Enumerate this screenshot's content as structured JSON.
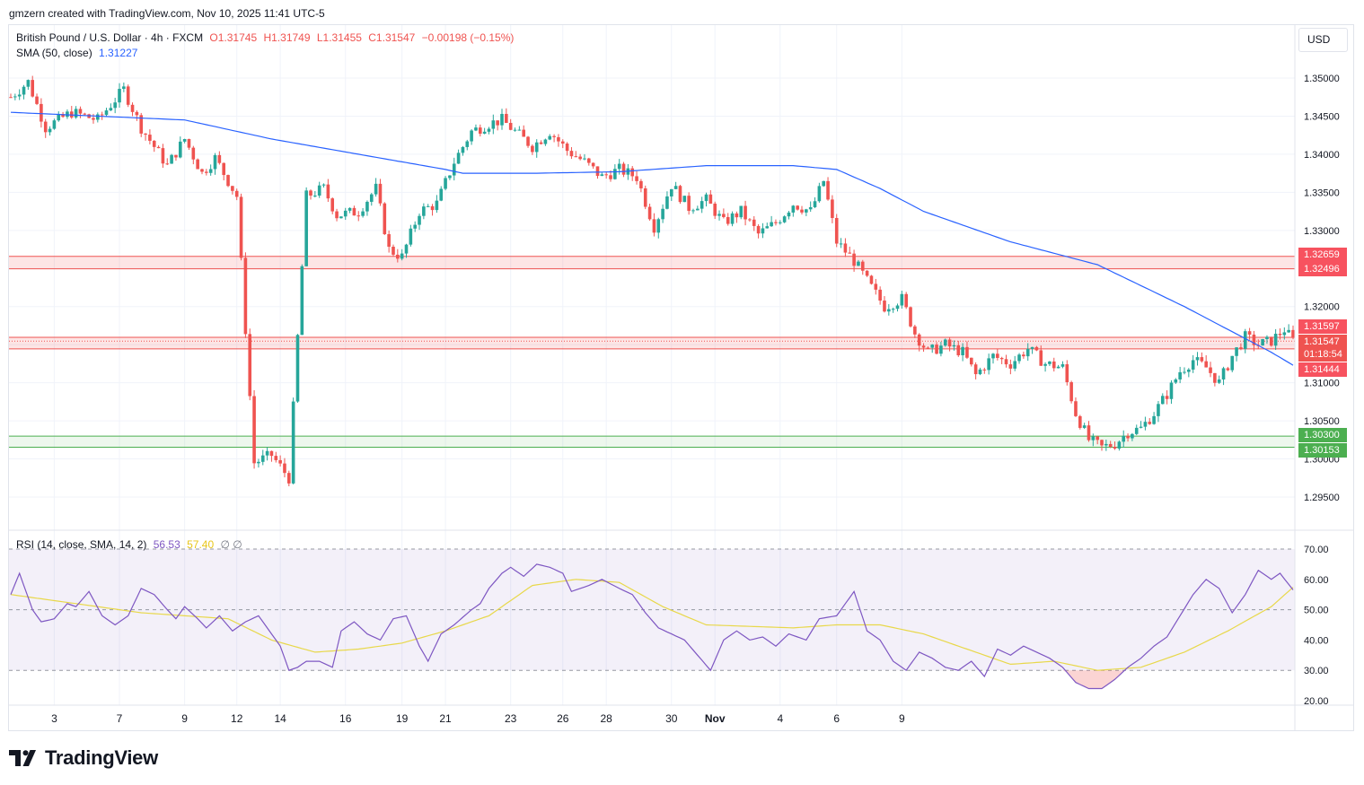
{
  "header": {
    "credit": "gmzern created with TradingView.com, Nov 10, 2025 11:41 UTC-5"
  },
  "legend": {
    "symbol": "British Pound / U.S. Dollar · 4h · FXCM",
    "open": "O1.31745",
    "high": "H1.31749",
    "low": "L1.31455",
    "close": "C1.31547",
    "change": "−0.00198 (−0.15%)",
    "sma_label": "SMA (50, close)",
    "sma_value": "1.31227",
    "rsi_label": "RSI (14, close, SMA, 14, 2)",
    "rsi_value": "56.53",
    "rsi_sma_value": "57.40",
    "rsi_extra": "∅ ∅"
  },
  "currency": "USD",
  "price_labels": {
    "zone1_top": "1.32659",
    "zone1_bottom": "1.32496",
    "zone2_top": "1.31597",
    "last_price": "1.31547",
    "countdown": "01:18:54",
    "zone2_bottom": "1.31444",
    "zone3_top": "1.30300",
    "zone3_bottom": "1.30153"
  },
  "footer": {
    "brand": "TradingView"
  },
  "colors": {
    "up": "#26a69a",
    "down": "#ef5350",
    "sma": "#2962ff",
    "rsi": "#7e57c2",
    "rsi_sma": "#e8d84a",
    "support": "#4caf50",
    "resistance": "#ef5350"
  },
  "chart_data": [
    {
      "type": "candlestick",
      "title": "British Pound / U.S. Dollar · 4h · FXCM",
      "ylim": [
        1.2925,
        1.3545
      ],
      "yticks": [
        1.295,
        1.3,
        1.305,
        1.31,
        1.315,
        1.32,
        1.325,
        1.33,
        1.335,
        1.34,
        1.345,
        1.35
      ],
      "xticks": [
        "3",
        "7",
        "9",
        "12",
        "14",
        "16",
        "19",
        "21",
        "23",
        "26",
        "28",
        "30",
        "Nov",
        "4",
        "6",
        "9"
      ],
      "grid": true,
      "zones": [
        {
          "name": "resistance",
          "top": 1.32659,
          "bottom": 1.32496
        },
        {
          "name": "resistance",
          "top": 1.31597,
          "bottom": 1.31444
        },
        {
          "name": "support",
          "top": 1.303,
          "bottom": 1.30153
        }
      ],
      "close_anchors": [
        [
          0,
          1.3475
        ],
        [
          4,
          1.3495
        ],
        [
          8,
          1.3435
        ],
        [
          14,
          1.3455
        ],
        [
          20,
          1.3445
        ],
        [
          26,
          1.3485
        ],
        [
          30,
          1.3435
        ],
        [
          36,
          1.3385
        ],
        [
          40,
          1.342
        ],
        [
          44,
          1.3375
        ],
        [
          47,
          1.3395
        ],
        [
          52,
          1.3345
        ],
        [
          56,
          1.2995
        ],
        [
          60,
          1.3005
        ],
        [
          64,
          1.2975
        ],
        [
          68,
          1.3345
        ],
        [
          72,
          1.3355
        ],
        [
          75,
          1.332
        ],
        [
          80,
          1.3325
        ],
        [
          84,
          1.3355
        ],
        [
          87,
          1.3275
        ],
        [
          90,
          1.3265
        ],
        [
          94,
          1.3325
        ],
        [
          98,
          1.3335
        ],
        [
          102,
          1.339
        ],
        [
          106,
          1.343
        ],
        [
          110,
          1.344
        ],
        [
          113,
          1.3445
        ],
        [
          116,
          1.343
        ],
        [
          120,
          1.341
        ],
        [
          124,
          1.343
        ],
        [
          128,
          1.3405
        ],
        [
          132,
          1.339
        ],
        [
          136,
          1.337
        ],
        [
          140,
          1.338
        ],
        [
          144,
          1.337
        ],
        [
          148,
          1.3305
        ],
        [
          152,
          1.336
        ],
        [
          156,
          1.333
        ],
        [
          160,
          1.334
        ],
        [
          164,
          1.331
        ],
        [
          168,
          1.3325
        ],
        [
          172,
          1.3295
        ],
        [
          176,
          1.331
        ],
        [
          180,
          1.3335
        ],
        [
          184,
          1.3325
        ],
        [
          187,
          1.3365
        ],
        [
          190,
          1.3285
        ],
        [
          194,
          1.326
        ],
        [
          198,
          1.3225
        ],
        [
          201,
          1.32
        ],
        [
          205,
          1.321
        ],
        [
          208,
          1.3165
        ],
        [
          211,
          1.314
        ],
        [
          215,
          1.315
        ],
        [
          219,
          1.314
        ],
        [
          222,
          1.311
        ],
        [
          226,
          1.3135
        ],
        [
          230,
          1.3125
        ],
        [
          234,
          1.3145
        ],
        [
          238,
          1.3125
        ],
        [
          242,
          1.312
        ],
        [
          245,
          1.306
        ],
        [
          248,
          1.3025
        ],
        [
          251,
          1.3015
        ],
        [
          254,
          1.302
        ],
        [
          257,
          1.3035
        ],
        [
          260,
          1.304
        ],
        [
          263,
          1.306
        ],
        [
          266,
          1.3085
        ],
        [
          269,
          1.3115
        ],
        [
          272,
          1.313
        ],
        [
          275,
          1.312
        ],
        [
          278,
          1.31
        ],
        [
          281,
          1.3135
        ],
        [
          284,
          1.316
        ],
        [
          287,
          1.315
        ],
        [
          290,
          1.3155
        ],
        [
          293,
          1.317
        ],
        [
          295,
          1.3155
        ]
      ],
      "sma_anchors": [
        [
          0,
          1.3455
        ],
        [
          40,
          1.3445
        ],
        [
          60,
          1.342
        ],
        [
          80,
          1.34
        ],
        [
          100,
          1.338
        ],
        [
          104,
          1.3375
        ],
        [
          120,
          1.3375
        ],
        [
          140,
          1.3377
        ],
        [
          160,
          1.3385
        ],
        [
          180,
          1.3385
        ],
        [
          190,
          1.338
        ],
        [
          200,
          1.3355
        ],
        [
          210,
          1.3325
        ],
        [
          230,
          1.3285
        ],
        [
          250,
          1.3255
        ],
        [
          270,
          1.32
        ],
        [
          280,
          1.317
        ],
        [
          290,
          1.314
        ],
        [
          295,
          1.3123
        ]
      ],
      "last_price": 1.31547,
      "sma_last": 1.31227
    },
    {
      "type": "line",
      "title": "RSI (14, close, SMA, 14, 2)",
      "ylim": [
        17,
        73
      ],
      "yticks": [
        20,
        30,
        40,
        50,
        60,
        70
      ],
      "bands": [
        30,
        50,
        70
      ],
      "series": [
        {
          "name": "RSI",
          "anchors": [
            [
              0,
              55
            ],
            [
              2,
              62
            ],
            [
              5,
              50
            ],
            [
              7,
              46
            ],
            [
              10,
              47
            ],
            [
              13,
              52
            ],
            [
              15,
              51
            ],
            [
              18,
              56
            ],
            [
              21,
              48
            ],
            [
              24,
              45
            ],
            [
              27,
              48
            ],
            [
              30,
              57
            ],
            [
              33,
              55
            ],
            [
              36,
              50
            ],
            [
              38,
              47
            ],
            [
              40,
              51
            ],
            [
              43,
              47
            ],
            [
              45,
              44
            ],
            [
              48,
              48
            ],
            [
              51,
              43
            ],
            [
              54,
              46
            ],
            [
              57,
              48
            ],
            [
              60,
              42
            ],
            [
              62,
              38
            ],
            [
              64,
              30
            ],
            [
              66,
              31
            ],
            [
              68,
              33
            ],
            [
              71,
              33
            ],
            [
              74,
              31
            ],
            [
              76,
              43
            ],
            [
              79,
              46
            ],
            [
              82,
              42
            ],
            [
              85,
              40
            ],
            [
              88,
              47
            ],
            [
              91,
              48
            ],
            [
              94,
              38
            ],
            [
              96,
              33
            ],
            [
              99,
              42
            ],
            [
              102,
              45
            ],
            [
              106,
              50
            ],
            [
              108,
              52
            ],
            [
              110,
              57
            ],
            [
              113,
              62
            ],
            [
              115,
              64
            ],
            [
              118,
              61
            ],
            [
              121,
              65
            ],
            [
              124,
              64
            ],
            [
              127,
              62
            ],
            [
              129,
              56
            ],
            [
              133,
              58
            ],
            [
              136,
              60
            ],
            [
              140,
              57
            ],
            [
              143,
              55
            ],
            [
              146,
              49
            ],
            [
              149,
              44
            ],
            [
              152,
              42
            ],
            [
              155,
              40
            ],
            [
              158,
              35
            ],
            [
              161,
              30
            ],
            [
              164,
              40
            ],
            [
              167,
              43
            ],
            [
              170,
              40
            ],
            [
              173,
              41
            ],
            [
              176,
              38
            ],
            [
              179,
              42
            ],
            [
              183,
              40
            ],
            [
              186,
              47
            ],
            [
              190,
              48
            ],
            [
              194,
              56
            ],
            [
              197,
              43
            ],
            [
              200,
              40
            ],
            [
              203,
              33
            ],
            [
              206,
              30
            ],
            [
              209,
              36
            ],
            [
              212,
              34
            ],
            [
              215,
              31
            ],
            [
              218,
              30
            ],
            [
              221,
              33
            ],
            [
              224,
              28
            ],
            [
              227,
              37
            ],
            [
              230,
              35
            ],
            [
              233,
              38
            ],
            [
              236,
              36
            ],
            [
              239,
              34
            ],
            [
              242,
              31
            ],
            [
              245,
              26
            ],
            [
              248,
              24
            ],
            [
              251,
              24
            ],
            [
              254,
              27
            ],
            [
              257,
              31
            ],
            [
              260,
              34
            ],
            [
              263,
              38
            ],
            [
              266,
              41
            ],
            [
              269,
              48
            ],
            [
              272,
              55
            ],
            [
              275,
              60
            ],
            [
              278,
              57
            ],
            [
              281,
              49
            ],
            [
              284,
              55
            ],
            [
              287,
              63
            ],
            [
              290,
              60
            ],
            [
              292,
              62
            ],
            [
              295,
              56.53
            ]
          ]
        },
        {
          "name": "RSI-based SMA",
          "anchors": [
            [
              0,
              55
            ],
            [
              15,
              52
            ],
            [
              30,
              49
            ],
            [
              50,
              47
            ],
            [
              60,
              40
            ],
            [
              70,
              36
            ],
            [
              80,
              37
            ],
            [
              90,
              39
            ],
            [
              100,
              43
            ],
            [
              110,
              48
            ],
            [
              120,
              58
            ],
            [
              130,
              60
            ],
            [
              140,
              59
            ],
            [
              150,
              51
            ],
            [
              160,
              45
            ],
            [
              180,
              44
            ],
            [
              190,
              45
            ],
            [
              200,
              45
            ],
            [
              210,
              42
            ],
            [
              220,
              37
            ],
            [
              230,
              32
            ],
            [
              240,
              33
            ],
            [
              250,
              30
            ],
            [
              260,
              31
            ],
            [
              270,
              36
            ],
            [
              280,
              43
            ],
            [
              290,
              51
            ],
            [
              295,
              57.4
            ]
          ]
        }
      ]
    }
  ]
}
